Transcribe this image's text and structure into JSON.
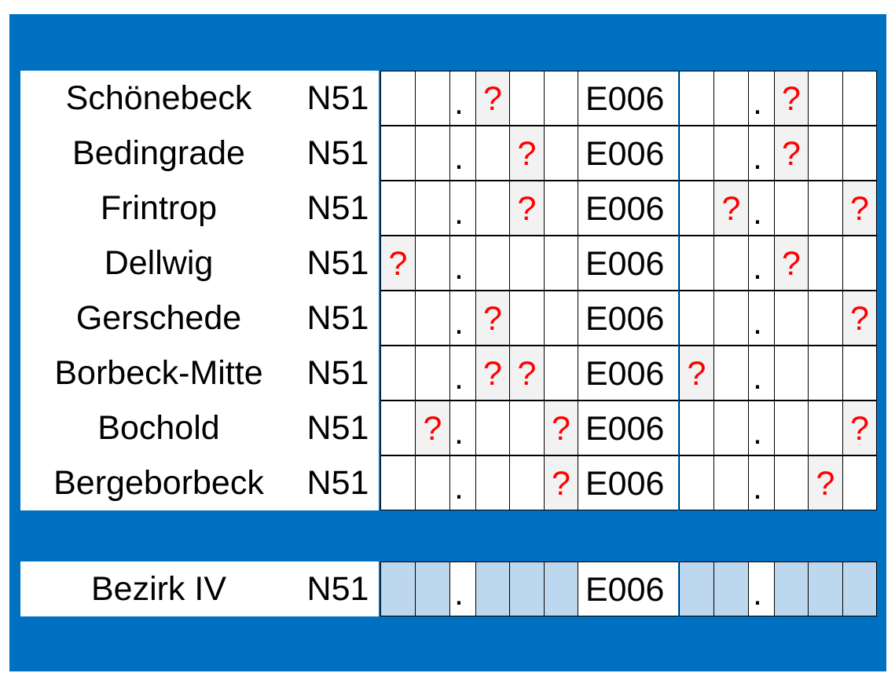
{
  "rows": [
    {
      "name": "Schönebeck",
      "n_prefix": "N51",
      "e_prefix": "E006",
      "n": [
        "",
        "",
        "",
        "?",
        "",
        ""
      ],
      "e": [
        "",
        "",
        "",
        "?",
        "",
        ""
      ]
    },
    {
      "name": "Bedingrade",
      "n_prefix": "N51",
      "e_prefix": "E006",
      "n": [
        "",
        "",
        "",
        "",
        "?",
        ""
      ],
      "e": [
        "",
        "",
        "",
        "?",
        "",
        ""
      ]
    },
    {
      "name": "Frintrop",
      "n_prefix": "N51",
      "e_prefix": "E006",
      "n": [
        "",
        "",
        "",
        "",
        "?",
        ""
      ],
      "e": [
        "",
        "?",
        "",
        "",
        "",
        "?"
      ]
    },
    {
      "name": "Dellwig",
      "n_prefix": "N51",
      "e_prefix": "E006",
      "n": [
        "?",
        "",
        "",
        "",
        "",
        ""
      ],
      "e": [
        "",
        "",
        "",
        "?",
        "",
        ""
      ]
    },
    {
      "name": "Gerschede",
      "n_prefix": "N51",
      "e_prefix": "E006",
      "n": [
        "",
        "",
        "",
        "?",
        "",
        ""
      ],
      "e": [
        "",
        "",
        "",
        "",
        "",
        "?"
      ]
    },
    {
      "name": "Borbeck-Mitte",
      "n_prefix": "N51",
      "e_prefix": "E006",
      "n": [
        "",
        "",
        "",
        "?",
        "?",
        ""
      ],
      "e": [
        "?",
        "",
        "",
        "",
        "",
        ""
      ]
    },
    {
      "name": "Bochold",
      "n_prefix": "N51",
      "e_prefix": "E006",
      "n": [
        "",
        "?",
        "",
        "",
        "",
        "?"
      ],
      "e": [
        "",
        "",
        "",
        "",
        "",
        "?"
      ]
    },
    {
      "name": "Bergeborbeck",
      "n_prefix": "N51",
      "e_prefix": "E006",
      "n": [
        "",
        "",
        "",
        "",
        "",
        "?"
      ],
      "e": [
        "",
        "",
        "",
        "",
        "?",
        ""
      ]
    }
  ],
  "summary": {
    "name": "Bezirk IV",
    "n_prefix": "N51",
    "e_prefix": "E006"
  },
  "decimal_point": ".",
  "colors": {
    "frame": "#0070c0",
    "question": "#ff0000",
    "question_bg": "#f2f2f2",
    "answer_bg": "#bdd7ee"
  }
}
